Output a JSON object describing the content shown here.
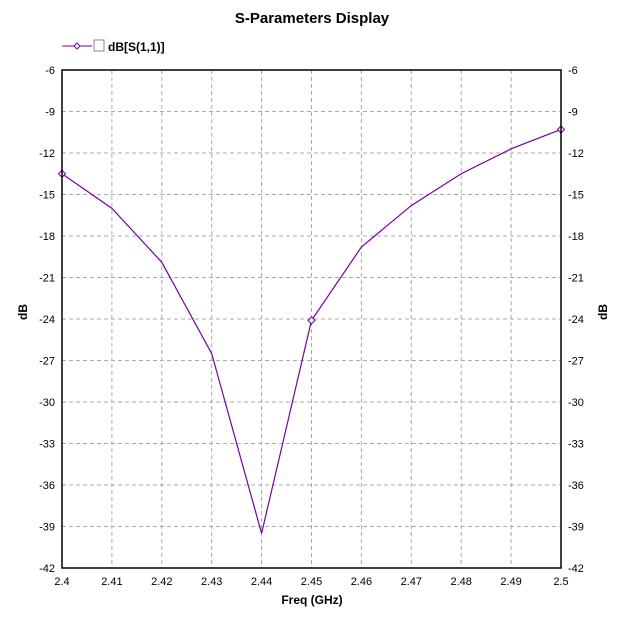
{
  "chart_data": {
    "type": "line",
    "title": "S-Parameters Display",
    "xlabel": "Freq (GHz)",
    "ylabel": "dB",
    "ylabel_right": "dB",
    "xlim": [
      2.4,
      2.5
    ],
    "ylim": [
      -42,
      -6
    ],
    "xticks": [
      "2.4",
      "2.41",
      "2.42",
      "2.43",
      "2.44",
      "2.45",
      "2.46",
      "2.47",
      "2.48",
      "2.49",
      "2.5"
    ],
    "yticks": [
      "-6",
      "-9",
      "-12",
      "-15",
      "-18",
      "-21",
      "-24",
      "-27",
      "-30",
      "-33",
      "-36",
      "-39",
      "-42"
    ],
    "grid": true,
    "legend_placement": "top-left",
    "series": [
      {
        "name": "dB[S(1,1)]",
        "color": "#7b00a0",
        "x": [
          2.4,
          2.41,
          2.42,
          2.43,
          2.44,
          2.45,
          2.46,
          2.47,
          2.48,
          2.49,
          2.5
        ],
        "y": [
          -13.5,
          -16.0,
          -19.9,
          -26.5,
          -39.5,
          -24.1,
          -18.8,
          -15.8,
          -13.5,
          -11.7,
          -10.3
        ],
        "marker_x": [
          2.4,
          2.45,
          2.5
        ]
      }
    ]
  }
}
